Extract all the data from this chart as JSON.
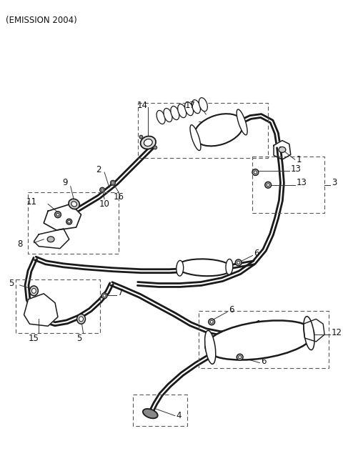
{
  "title": "(EMISSION 2004)",
  "bg_color": "#ffffff",
  "line_color": "#1a1a1a",
  "label_color": "#111111",
  "fig_width": 4.8,
  "fig_height": 6.38,
  "dpi": 100
}
